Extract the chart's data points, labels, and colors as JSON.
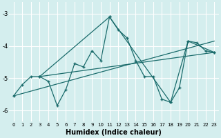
{
  "xlabel": "Humidex (Indice chaleur)",
  "bg_color": "#d4eeee",
  "line_color": "#1a6b6b",
  "grid_color": "#ffffff",
  "xlim": [
    -0.5,
    23.5
  ],
  "ylim": [
    -6.35,
    -2.65
  ],
  "yticks": [
    -6,
    -5,
    -4,
    -3
  ],
  "xticks": [
    0,
    1,
    2,
    3,
    4,
    5,
    6,
    7,
    8,
    9,
    10,
    11,
    12,
    13,
    14,
    15,
    16,
    17,
    18,
    19,
    20,
    21,
    22,
    23
  ],
  "series1": [
    [
      0,
      -5.55
    ],
    [
      1,
      -5.2
    ],
    [
      2,
      -4.95
    ],
    [
      3,
      -4.95
    ],
    [
      4,
      -5.1
    ],
    [
      5,
      -5.85
    ],
    [
      6,
      -5.35
    ],
    [
      7,
      -4.55
    ],
    [
      8,
      -4.65
    ],
    [
      9,
      -4.15
    ],
    [
      10,
      -4.45
    ],
    [
      11,
      -3.1
    ],
    [
      12,
      -3.5
    ],
    [
      13,
      -3.75
    ],
    [
      14,
      -4.45
    ],
    [
      15,
      -4.95
    ],
    [
      16,
      -4.95
    ],
    [
      17,
      -5.65
    ],
    [
      18,
      -5.75
    ],
    [
      19,
      -5.3
    ],
    [
      20,
      -3.85
    ],
    [
      21,
      -3.9
    ],
    [
      22,
      -4.15
    ],
    [
      23,
      -4.2
    ]
  ],
  "line_trend1": [
    [
      0,
      -5.55
    ],
    [
      23,
      -3.85
    ]
  ],
  "line_trend2": [
    [
      3,
      -4.95
    ],
    [
      23,
      -4.2
    ]
  ],
  "line_zigzag": [
    [
      3,
      -4.95
    ],
    [
      11,
      -3.1
    ],
    [
      18,
      -5.75
    ],
    [
      20,
      -3.85
    ],
    [
      23,
      -4.2
    ]
  ]
}
